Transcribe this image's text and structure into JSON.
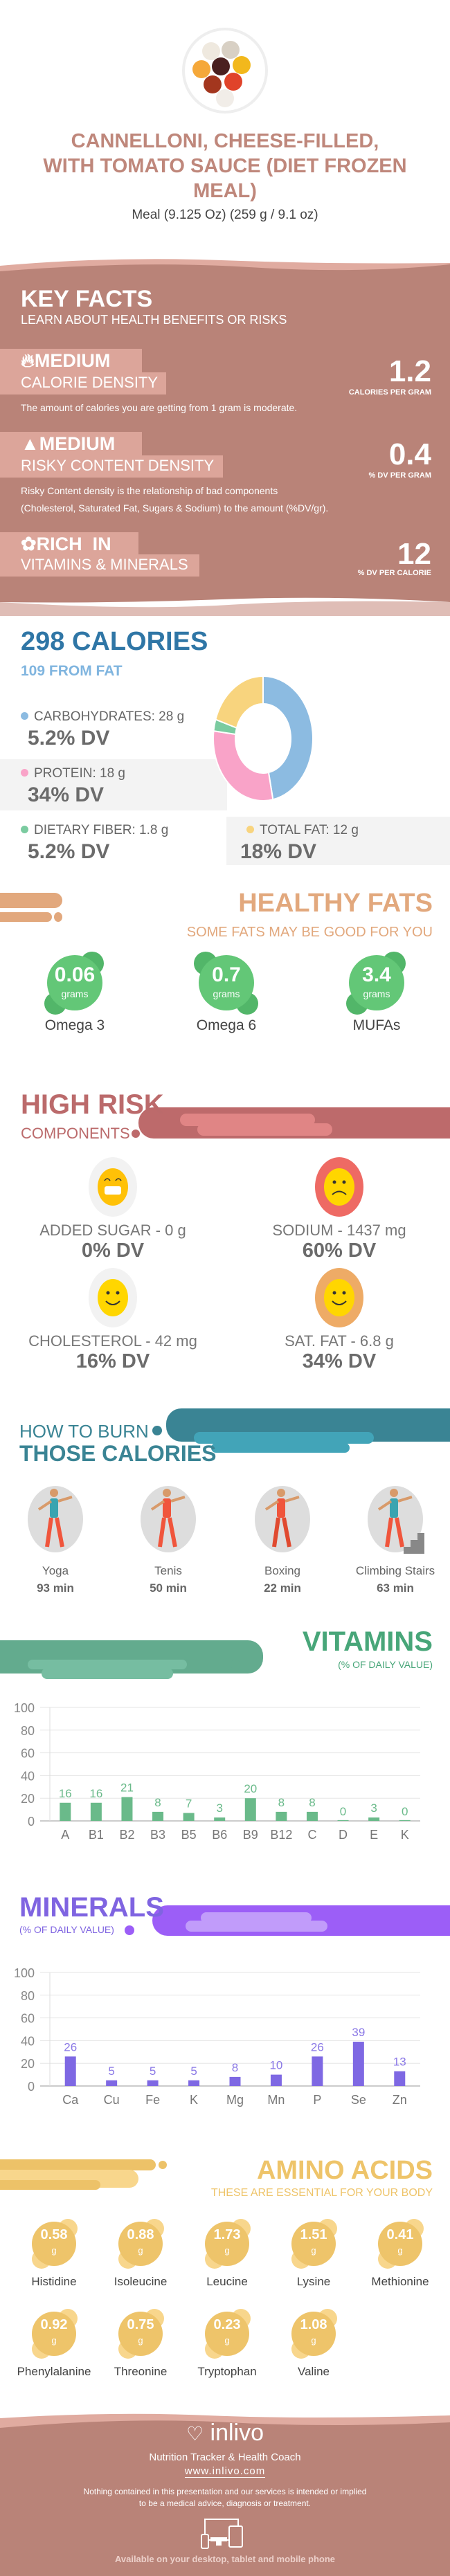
{
  "food": {
    "title_lines": [
      "CANNELLONI, CHEESE-FILLED,",
      "WITH TOMATO SAUCE (DIET FROZEN",
      "MEAL)"
    ],
    "serving": "Meal (9.125 Oz) (259 g / 9.1 oz)"
  },
  "key_facts": {
    "title": "KEY FACTS",
    "subtitle": "LEARN ABOUT HEALTH BENEFITS OR RISKS",
    "items": [
      {
        "icon": "flame-icon",
        "level": "MEDIUM",
        "label": "CALORIE DENSITY",
        "value": "1.2",
        "unit": "CALORIES PER GRAM",
        "desc": [
          "The amount of calories you are getting from 1 gram is moderate."
        ]
      },
      {
        "icon": "warning-icon",
        "level": "MEDIUM",
        "label": "RISKY CONTENT DENSITY",
        "value": "0.4",
        "unit": "% DV PER GRAM",
        "desc": [
          "Risky Content density is the relationship of bad components",
          "(Cholesterol, Saturated Fat, Sugars & Sodium) to the amount (%DV/gr)."
        ]
      },
      {
        "icon": "leaf-icon",
        "level": "RICH  IN",
        "label": "VITAMINS & MINERALS",
        "value": "12",
        "unit": "% DV PER CALORIE"
      }
    ]
  },
  "calories": {
    "title": "298 CALORIES",
    "from_fat": "109 FROM FAT",
    "macros": [
      {
        "label": "CARBOHYDRATES: 28 g",
        "dv": "5.2% DV",
        "grams": 28,
        "color": "#8cbbe1"
      },
      {
        "label": "PROTEIN: 18 g",
        "dv": "34% DV",
        "grams": 18,
        "color": "#f9a3c8"
      },
      {
        "label": "DIETARY FIBER: 1.8 g",
        "dv": "5.2% DV",
        "grams": 1.8,
        "color": "#7bcba0"
      },
      {
        "label": "TOTAL FAT: 12 g",
        "dv": "18% DV",
        "grams": 12,
        "color": "#f8d47e"
      }
    ]
  },
  "healthy_fats": {
    "title": "HEALTHY FATS",
    "subtitle": "SOME FATS MAY BE GOOD FOR YOU",
    "unit": "grams",
    "items": [
      {
        "value": "0.06",
        "label": "Omega 3"
      },
      {
        "value": "0.7",
        "label": "Omega 6"
      },
      {
        "value": "3.4",
        "label": "MUFAs"
      }
    ]
  },
  "high_risk": {
    "title": "HIGH RISK",
    "subtitle": "COMPONENTS",
    "items": [
      {
        "label": "ADDED SUGAR - 0 g",
        "dv": "0% DV",
        "face": "grin",
        "ring": "#f2f2f2"
      },
      {
        "label": "SODIUM - 1437 mg",
        "dv": "60% DV",
        "face": "sad",
        "ring": "#ee6a64"
      },
      {
        "label": "CHOLESTEROL - 42 mg",
        "dv": "16% DV",
        "face": "smile",
        "ring": "#f2f2f2"
      },
      {
        "label": "SAT. FAT - 6.8 g",
        "dv": "34% DV",
        "face": "smile",
        "ring": "#eeab66"
      }
    ]
  },
  "burn": {
    "title_top": "HOW TO BURN",
    "title_bottom": "THOSE CALORIES",
    "items": [
      {
        "label": "Yoga",
        "time": "93 min"
      },
      {
        "label": "Tenis",
        "time": "50 min"
      },
      {
        "label": "Boxing",
        "time": "22 min"
      },
      {
        "label": "Climbing Stairs",
        "time": "63 min"
      }
    ]
  },
  "vitamins": {
    "title": "VITAMINS",
    "subtitle": "(% OF DAILY VALUE)"
  },
  "minerals": {
    "title": "MINERALS",
    "subtitle": "(% OF DAILY VALUE)"
  },
  "chart_data": [
    {
      "type": "bar",
      "categories": [
        "A",
        "B1",
        "B2",
        "B3",
        "B5",
        "B6",
        "B9",
        "B12",
        "C",
        "D",
        "E",
        "K"
      ],
      "values": [
        16,
        16,
        21,
        8,
        7,
        3,
        20,
        8,
        8,
        0,
        3,
        0
      ],
      "ylim": [
        0,
        100
      ],
      "yticks": [
        "0",
        "20",
        "40",
        "60",
        "80",
        "100"
      ],
      "grid": true,
      "color": "#6aba8a"
    },
    {
      "type": "bar",
      "categories": [
        "Ca",
        "Cu",
        "Fe",
        "K",
        "Mg",
        "Mn",
        "P",
        "Se",
        "Zn"
      ],
      "values": [
        26,
        5,
        5,
        5,
        8,
        10,
        26,
        39,
        13
      ],
      "ylim": [
        0,
        100
      ],
      "yticks": [
        "0",
        "20",
        "40",
        "60",
        "80",
        "100"
      ],
      "grid": true,
      "color": "#7e68e3"
    }
  ],
  "amino": {
    "title": "AMINO ACIDS",
    "subtitle": "THESE ARE ESSENTIAL FOR YOUR BODY",
    "unit": "g",
    "items": [
      {
        "value": "0.58",
        "label": "Histidine"
      },
      {
        "value": "0.88",
        "label": "Isoleucine"
      },
      {
        "value": "1.73",
        "label": "Leucine"
      },
      {
        "value": "1.51",
        "label": "Lysine"
      },
      {
        "value": "0.41",
        "label": "Methionine"
      },
      {
        "value": "0.92",
        "label": "Phenylalanine"
      },
      {
        "value": "0.75",
        "label": "Threonine"
      },
      {
        "value": "0.23",
        "label": "Tryptophan"
      },
      {
        "value": "1.08",
        "label": "Valine"
      }
    ]
  },
  "footer": {
    "brand": "inlivo",
    "tagline": "Nutrition Tracker & Health Coach",
    "url": "www.inlivo.com",
    "disclaimer": [
      "Nothing contained in this presentation and our services is intended or implied",
      "to be a medical advice, diagnosis or treatment."
    ],
    "available": "Available on your desktop, tablet and mobile phone"
  },
  "colors": {
    "rose": "#b98378",
    "rose_light": "#dca59a",
    "blue": "#2f76a6",
    "orange": "#e2a87d",
    "risk": "#b96a6a",
    "teal": "#3a8494",
    "green": "#4aa87a",
    "purple": "#8064e2",
    "gold": "#eec46a"
  }
}
